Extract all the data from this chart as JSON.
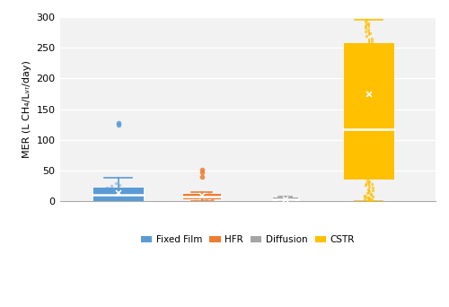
{
  "ylabel": "MER (L CH₄/Lᵥᵣ/day)",
  "ylim": [
    0,
    300
  ],
  "yticks": [
    0,
    50,
    100,
    150,
    200,
    250,
    300
  ],
  "categories": [
    "Fixed Film",
    "HFR",
    "Diffusion",
    "CSTR"
  ],
  "colors": [
    "#5B9BD5",
    "#ED7D31",
    "#A5A5A5",
    "#FFC000"
  ],
  "box_data": {
    "Fixed Film": {
      "q1": 1,
      "median": 10,
      "q3": 22,
      "whisker_low": 0,
      "whisker_high": 38,
      "mean": 13,
      "outliers": [
        125,
        127
      ],
      "scatter_in_box": [
        0,
        1,
        2,
        3,
        4,
        5,
        7,
        8,
        10,
        12,
        13,
        15,
        17,
        19,
        21,
        22,
        25,
        27,
        30
      ]
    },
    "HFR": {
      "q1": 3,
      "median": 7,
      "q3": 12,
      "whisker_low": 0,
      "whisker_high": 15,
      "mean": 9,
      "outliers": [
        40,
        47,
        52
      ],
      "scatter_in_box": [
        0,
        1,
        2,
        3,
        4,
        5,
        6,
        7,
        8,
        9,
        10,
        11,
        12,
        14
      ]
    },
    "Diffusion": {
      "q1": 2,
      "median": 4,
      "q3": 6,
      "whisker_low": 1,
      "whisker_high": 8,
      "mean": 4,
      "outliers": [],
      "scatter_in_box": [
        1,
        2,
        3,
        4,
        5,
        6,
        7
      ]
    },
    "CSTR": {
      "q1": 35,
      "median": 117,
      "q3": 258,
      "whisker_low": 0,
      "whisker_high": 295,
      "mean": 175,
      "outliers": [],
      "scatter_whisker_low": [
        0,
        1,
        2,
        3,
        4,
        5,
        6,
        7,
        8,
        9,
        10,
        12,
        14,
        16,
        18,
        20,
        22,
        24,
        26,
        28,
        30,
        32,
        34
      ],
      "scatter_whisker_high": [
        260,
        265,
        270,
        273,
        276,
        279,
        282,
        285,
        288,
        290,
        292,
        295
      ],
      "scatter_in_box": [
        40,
        50,
        60,
        70,
        80,
        90,
        100,
        110,
        120,
        130,
        140,
        150,
        160,
        170,
        180,
        190,
        200,
        210,
        220,
        230,
        240,
        250
      ]
    }
  },
  "background_color": "#FFFFFF",
  "plot_bg_color": "#F2F2F2",
  "grid_color": "#FFFFFF",
  "legend_labels": [
    "Fixed Film",
    "HFR",
    "Diffusion",
    "CSTR"
  ]
}
